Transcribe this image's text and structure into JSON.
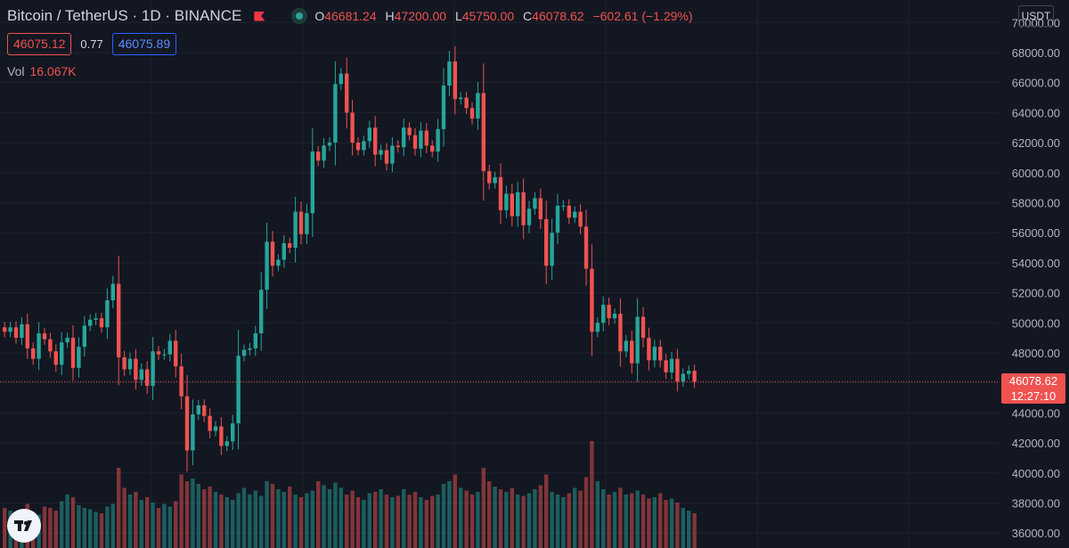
{
  "header": {
    "symbol": "Bitcoin / TetherUS",
    "interval": "1D",
    "exchange": "BINANCE",
    "open_label": "O",
    "open": "46681.24",
    "high_label": "H",
    "high": "47200.00",
    "low_label": "L",
    "low": "45750.00",
    "close_label": "C",
    "close": "46078.62",
    "change": "−602.61 (−1.29%)"
  },
  "trade": {
    "sell_price": "46075.12",
    "spread": "0.77",
    "buy_price": "46075.89"
  },
  "volume": {
    "label": "Vol",
    "value": "16.067K"
  },
  "currency": "USDT",
  "last_price": {
    "price": "46078.62",
    "countdown": "12:27:10"
  },
  "colors": {
    "background": "#131722",
    "up": "#26a69a",
    "down": "#ef5350",
    "grid": "#1e222d"
  },
  "chart_data": {
    "type": "candlestick",
    "title": "Bitcoin / TetherUS, 1D, BINANCE",
    "y_axis_label": "USDT",
    "y_ticks": [
      "70000.00",
      "68000.00",
      "66000.00",
      "64000.00",
      "62000.00",
      "60000.00",
      "58000.00",
      "56000.00",
      "54000.00",
      "52000.00",
      "50000.00",
      "48000.00",
      "46000.00",
      "44000.00",
      "42000.00",
      "40000.00",
      "38000.00",
      "36000.00"
    ],
    "ylim": [
      35000,
      71500
    ],
    "last_close": 46078.62,
    "closes": [
      49400,
      49700,
      49000,
      49900,
      48300,
      47600,
      49300,
      48900,
      48100,
      47200,
      48700,
      49000,
      47000,
      48400,
      49800,
      50200,
      50300,
      49700,
      51500,
      52600,
      47700,
      46900,
      47600,
      46200,
      46900,
      45800,
      48100,
      47900,
      47900,
      48800,
      47100,
      45100,
      41500,
      43900,
      44500,
      43800,
      42800,
      43100,
      41800,
      42100,
      43300,
      47800,
      48200,
      48300,
      49300,
      52200,
      55400,
      53800,
      54200,
      55300,
      55000,
      57400,
      55900,
      57300,
      61400,
      60800,
      61800,
      62000,
      65900,
      66600,
      64000,
      62000,
      61500,
      62100,
      63000,
      61200,
      61500,
      60600,
      61800,
      61700,
      63000,
      62500,
      61600,
      62800,
      61800,
      61400,
      62900,
      65800,
      67400,
      64900,
      65000,
      64300,
      63600,
      65300,
      60100,
      59300,
      59700,
      57500,
      58600,
      57100,
      58700,
      56500,
      57600,
      58300,
      56900,
      53800,
      56000,
      57800,
      57800,
      57000,
      57400,
      56400,
      53600,
      49400,
      50000,
      51200,
      50300,
      50600,
      48100,
      48800,
      47300,
      50400,
      49000,
      47500,
      48400,
      47500,
      46700,
      47600,
      46100,
      46600,
      46800,
      46078
    ],
    "volumes": [
      30,
      28,
      26,
      29,
      33,
      27,
      25,
      31,
      30,
      28,
      35,
      40,
      38,
      32,
      30,
      29,
      27,
      26,
      31,
      33,
      60,
      45,
      40,
      42,
      36,
      38,
      34,
      30,
      33,
      31,
      35,
      55,
      50,
      52,
      48,
      44,
      46,
      42,
      40,
      38,
      36,
      41,
      45,
      40,
      43,
      39,
      50,
      48,
      44,
      42,
      46,
      40,
      38,
      41,
      43,
      50,
      47,
      44,
      49,
      45,
      40,
      43,
      38,
      36,
      41,
      42,
      44,
      40,
      38,
      39,
      44,
      40,
      42,
      38,
      36,
      39,
      40,
      48,
      50,
      55,
      45,
      43,
      40,
      42,
      60,
      50,
      46,
      44,
      42,
      45,
      40,
      39,
      41,
      44,
      47,
      55,
      42,
      40,
      38,
      41,
      45,
      43,
      53,
      80,
      50,
      44,
      40,
      42,
      45,
      40,
      41,
      43,
      40,
      37,
      38,
      41,
      36,
      37,
      34,
      30,
      28,
      26
    ]
  }
}
